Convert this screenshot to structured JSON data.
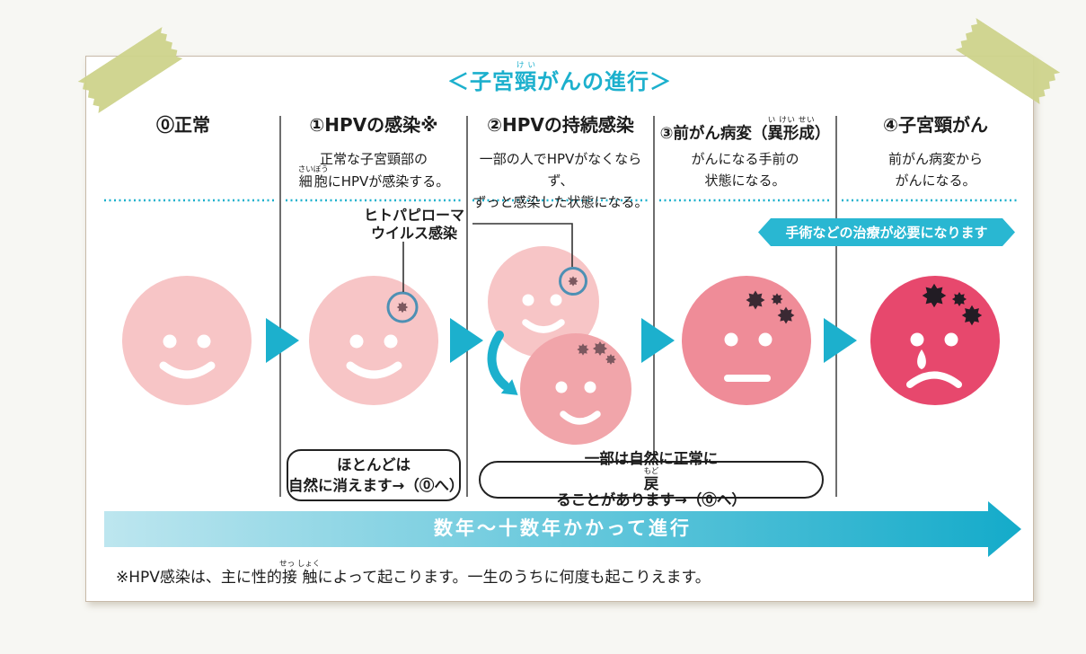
{
  "page": {
    "title_segs": [
      {
        "t": "＜子宮"
      },
      {
        "t": "頸",
        "r": "けい"
      },
      {
        "t": "がんの進行＞"
      }
    ],
    "footnote_segs": [
      {
        "t": "※HPV感染は、主に性的"
      },
      {
        "t": "接触",
        "r": "せっ しょく"
      },
      {
        "t": "によって起こります。一生のうちに何度も起こりえます。"
      }
    ]
  },
  "columns": [
    {
      "header_segs": [
        {
          "t": "⓪正常"
        }
      ],
      "desc_segs": []
    },
    {
      "header_segs": [
        {
          "t": "①HPVの感染※"
        }
      ],
      "desc_segs": [
        {
          "t": "正常な子宮頸部の"
        },
        {
          "br": true
        },
        {
          "t": "細胞",
          "r": "さいぼう"
        },
        {
          "t": "にHPVが感染する。"
        }
      ]
    },
    {
      "header_segs": [
        {
          "t": "②HPVの持続感染"
        }
      ],
      "desc_segs": [
        {
          "t": "一部の人でHPVがなくならず、"
        },
        {
          "br": true
        },
        {
          "t": "ずっと感染した状態になる。"
        }
      ]
    },
    {
      "header_segs": [
        {
          "t": "③前がん病変（"
        },
        {
          "t": "異形成",
          "r": "い けい せい"
        },
        {
          "t": "）"
        }
      ],
      "desc_segs": [
        {
          "t": "がんになる手前の"
        },
        {
          "br": true
        },
        {
          "t": "状態になる。"
        }
      ]
    },
    {
      "header_segs": [
        {
          "t": "④子宮頸がん"
        }
      ],
      "desc_segs": [
        {
          "t": "前がん病変から"
        },
        {
          "br": true
        },
        {
          "t": "がんになる。"
        }
      ]
    }
  ],
  "callout": {
    "label_segs": [
      {
        "t": "ヒトパピローマ"
      },
      {
        "br": true
      },
      {
        "t": "ウイルス感染"
      }
    ]
  },
  "badge": {
    "text": "手術などの治療が必要になります"
  },
  "boxes": {
    "box1_segs": [
      {
        "t": "ほとんどは"
      },
      {
        "br": true
      },
      {
        "t": "自然に消えます→（⓪へ）"
      }
    ],
    "box2_segs": [
      {
        "t": "一部は自然に正常に"
      },
      {
        "t": "戻",
        "r": "もど"
      },
      {
        "t": "ることがあります→（⓪へ）"
      }
    ]
  },
  "timeline": {
    "label": "数年〜十数年かかって進行"
  },
  "icons": {
    "virus": "spiked-burst-shape",
    "stage_arrow": "right-pointing-triangle",
    "curved_arrow": "curved-down-arrow",
    "timeline_arrow": "long-right-gradient-arrow",
    "tape": "washi-tape-strip"
  },
  "colors": {
    "accent": "#1CB0CD",
    "badge_bg": "#29B7D2",
    "arrow_grad_start": "#BDE6EF",
    "arrow_grad_end": "#14ABCA",
    "face_stage0": "#F7C5C6",
    "face_stage2b": "#F1A5AA",
    "face_stage3": "#EF8C98",
    "face_stage4": "#E7486D",
    "virus_light": "#7C585F",
    "virus_mid": "#3A2933",
    "virus_dark": "#221C24",
    "circle_stroke": "#4E90B4",
    "separator": "#6E6E6E",
    "leader": "#333333",
    "tape": "#CDD38B",
    "card_border": "#C8BAA9",
    "text": "#1C1C1C"
  }
}
